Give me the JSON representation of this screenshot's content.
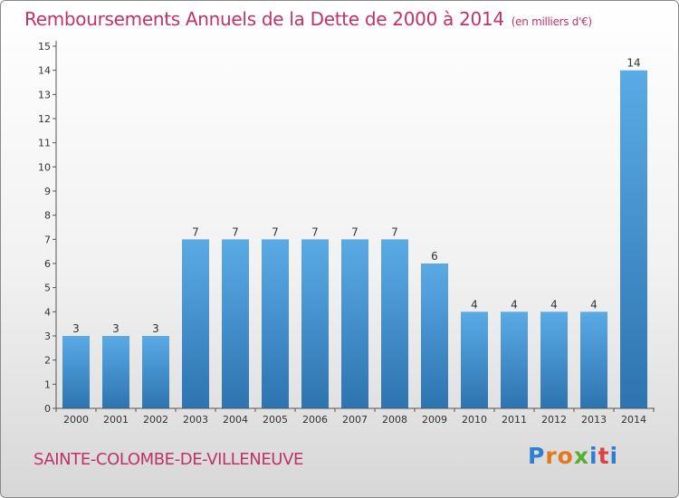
{
  "header": {
    "title": "Remboursements Annuels de la Dette de 2000 à 2014",
    "unit": "(en milliers d'€)"
  },
  "footer": {
    "commune": "SAINTE-COLOMBE-DE-VILLENEUVE",
    "logo": "Proxiti"
  },
  "colors": {
    "title": "#c0326a",
    "bar_top": "#5aaae6",
    "bar_bottom": "#2d74b0",
    "logo_letters": [
      "#2e7fd0",
      "#e07a1a",
      "#e07a1a",
      "#55b030",
      "#2e7fd0",
      "#e04040",
      "#2e7fd0"
    ]
  },
  "chart_data": {
    "type": "bar",
    "categories": [
      "2000",
      "2001",
      "2002",
      "2003",
      "2004",
      "2005",
      "2006",
      "2007",
      "2008",
      "2009",
      "2010",
      "2011",
      "2012",
      "2013",
      "2014"
    ],
    "values": [
      3,
      3,
      3,
      7,
      7,
      7,
      7,
      7,
      7,
      6,
      4,
      4,
      4,
      4,
      14
    ],
    "ylim": [
      0,
      15
    ],
    "yticks": [
      0,
      1,
      2,
      3,
      4,
      5,
      6,
      7,
      8,
      9,
      10,
      11,
      12,
      13,
      14,
      15
    ],
    "grid": false,
    "legend": false
  }
}
